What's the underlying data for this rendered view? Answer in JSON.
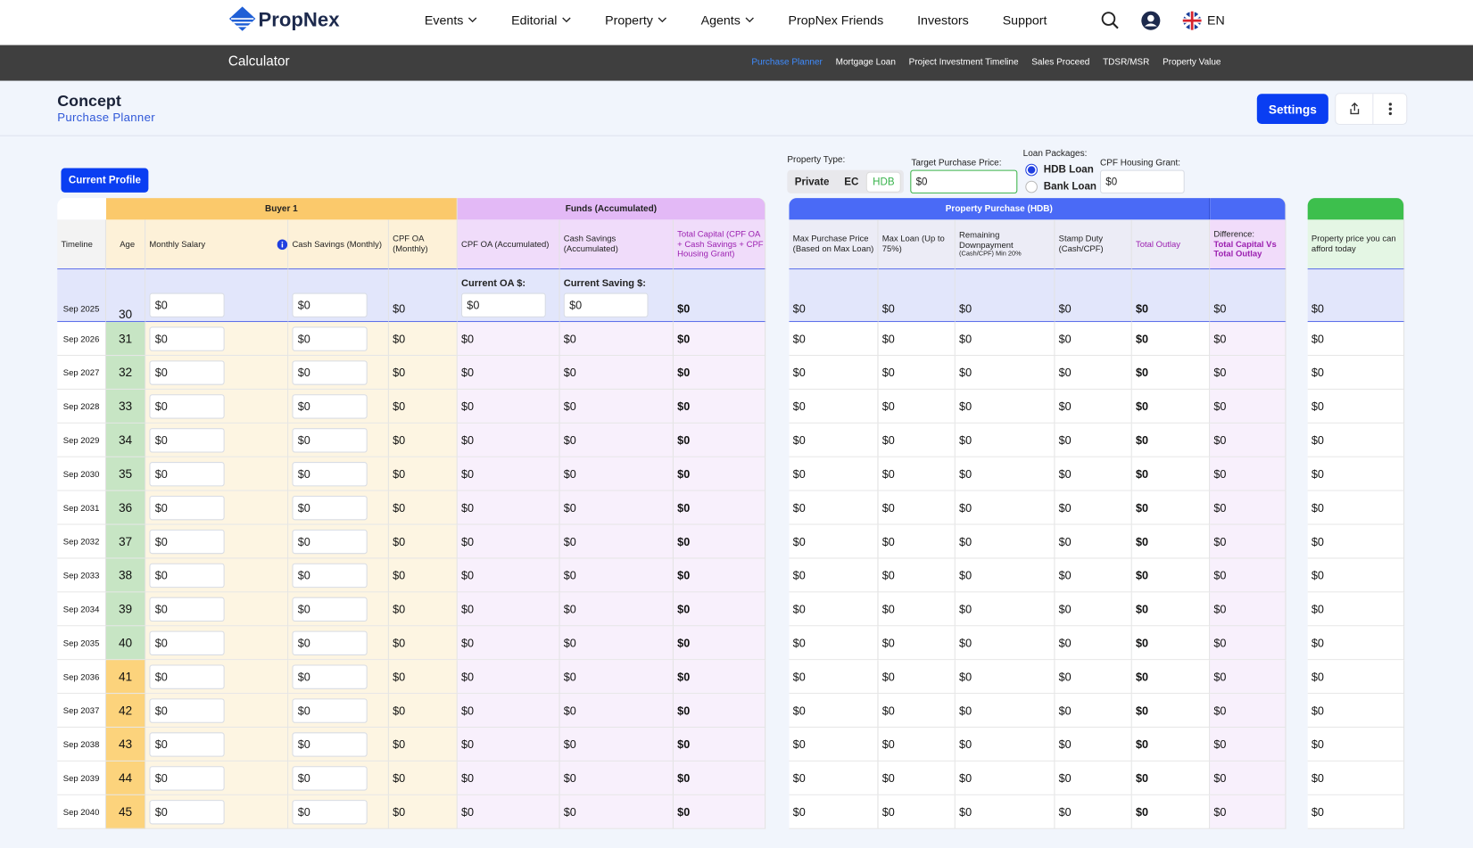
{
  "nav": {
    "brand": "PropNex",
    "items": [
      "Events",
      "Editorial",
      "Property",
      "Agents",
      "PropNex Friends",
      "Investors",
      "Support"
    ],
    "language": "EN"
  },
  "subnav": {
    "title": "Calculator",
    "links": [
      "Purchase Planner",
      "Mortgage Loan",
      "Project Investment Timeline",
      "Sales Proceed",
      "TDSR/MSR",
      "Property Value"
    ]
  },
  "page": {
    "title": "Concept",
    "subtitle": "Purchase Planner",
    "settings_button": "Settings"
  },
  "profile_button": "Current Profile",
  "controls": {
    "property_type_label": "Property Type:",
    "property_types": [
      "Private",
      "EC",
      "HDB"
    ],
    "target_label": "Target Purchase Price:",
    "target_value": "$0",
    "loan_label": "Loan Packages:",
    "loans": [
      "HDB Loan",
      "Bank Loan"
    ],
    "grant_label": "CPF Housing Grant:",
    "grant_value": "$0"
  },
  "table": {
    "groups": [
      "Buyer 1",
      "Funds (Accumulated)",
      "Property Purchase (HDB)"
    ],
    "columns": [
      {
        "label": "Timeline"
      },
      {
        "label": "Age"
      },
      {
        "label": "Monthly Salary"
      },
      {
        "label": "Cash Savings (Monthly)"
      },
      {
        "label": "CPF OA (Monthly)"
      },
      {
        "label": "CPF OA (Accumulated)"
      },
      {
        "label": "Cash Savings (Accumulated)"
      },
      {
        "label": "Total Capital (CPF OA + Cash Savings + CPF Housing Grant)"
      },
      {
        "label": "Max Purchase Price (Based on Max Loan)"
      },
      {
        "label": "Max Loan (Up to 75%)"
      },
      {
        "label": "Remaining Downpayment",
        "note": "(Cash/CPF) Min 20%"
      },
      {
        "label": "Stamp Duty (Cash/CPF)"
      },
      {
        "label": "Total Outlay"
      },
      {
        "label": "Difference:",
        "note": "Total Capital Vs Total Outlay"
      },
      {
        "label": "Property price you can afford today"
      }
    ],
    "first_row": {
      "timeline": "Sep 2025",
      "age": "30",
      "cpf_oa_label": "Current OA $:",
      "saving_label": "Current Saving $:",
      "cells": [
        "$0",
        "$0",
        "$0",
        "$0",
        "$0",
        "$0",
        "$0",
        "$0",
        "$0",
        "$0",
        "$0",
        "$0",
        "$0"
      ]
    },
    "rows": [
      {
        "timeline": "Sep 2026",
        "age": "31",
        "age_color": "#c7e5c4",
        "cells": [
          "$0",
          "$0",
          "$0",
          "$0",
          "$0",
          "$0",
          "$0",
          "$0",
          "$0",
          "$0",
          "$0",
          "$0",
          "$0"
        ]
      },
      {
        "timeline": "Sep 2027",
        "age": "32",
        "age_color": "#c7e5c4",
        "cells": [
          "$0",
          "$0",
          "$0",
          "$0",
          "$0",
          "$0",
          "$0",
          "$0",
          "$0",
          "$0",
          "$0",
          "$0",
          "$0"
        ]
      },
      {
        "timeline": "Sep 2028",
        "age": "33",
        "age_color": "#c7e5c4",
        "cells": [
          "$0",
          "$0",
          "$0",
          "$0",
          "$0",
          "$0",
          "$0",
          "$0",
          "$0",
          "$0",
          "$0",
          "$0",
          "$0"
        ]
      },
      {
        "timeline": "Sep 2029",
        "age": "34",
        "age_color": "#c7e5c4",
        "cells": [
          "$0",
          "$0",
          "$0",
          "$0",
          "$0",
          "$0",
          "$0",
          "$0",
          "$0",
          "$0",
          "$0",
          "$0",
          "$0"
        ]
      },
      {
        "timeline": "Sep 2030",
        "age": "35",
        "age_color": "#c7e5c4",
        "cells": [
          "$0",
          "$0",
          "$0",
          "$0",
          "$0",
          "$0",
          "$0",
          "$0",
          "$0",
          "$0",
          "$0",
          "$0",
          "$0"
        ]
      },
      {
        "timeline": "Sep 2031",
        "age": "36",
        "age_color": "#c7e5c4",
        "cells": [
          "$0",
          "$0",
          "$0",
          "$0",
          "$0",
          "$0",
          "$0",
          "$0",
          "$0",
          "$0",
          "$0",
          "$0",
          "$0"
        ]
      },
      {
        "timeline": "Sep 2032",
        "age": "37",
        "age_color": "#c7e5c4",
        "cells": [
          "$0",
          "$0",
          "$0",
          "$0",
          "$0",
          "$0",
          "$0",
          "$0",
          "$0",
          "$0",
          "$0",
          "$0",
          "$0"
        ]
      },
      {
        "timeline": "Sep 2033",
        "age": "38",
        "age_color": "#c7e5c4",
        "cells": [
          "$0",
          "$0",
          "$0",
          "$0",
          "$0",
          "$0",
          "$0",
          "$0",
          "$0",
          "$0",
          "$0",
          "$0",
          "$0"
        ]
      },
      {
        "timeline": "Sep 2034",
        "age": "39",
        "age_color": "#c7e5c4",
        "cells": [
          "$0",
          "$0",
          "$0",
          "$0",
          "$0",
          "$0",
          "$0",
          "$0",
          "$0",
          "$0",
          "$0",
          "$0",
          "$0"
        ]
      },
      {
        "timeline": "Sep 2035",
        "age": "40",
        "age_color": "#c7e5c4",
        "cells": [
          "$0",
          "$0",
          "$0",
          "$0",
          "$0",
          "$0",
          "$0",
          "$0",
          "$0",
          "$0",
          "$0",
          "$0",
          "$0"
        ]
      },
      {
        "timeline": "Sep 2036",
        "age": "41",
        "age_color": "#fcd37c",
        "cells": [
          "$0",
          "$0",
          "$0",
          "$0",
          "$0",
          "$0",
          "$0",
          "$0",
          "$0",
          "$0",
          "$0",
          "$0",
          "$0"
        ]
      },
      {
        "timeline": "Sep 2037",
        "age": "42",
        "age_color": "#fcd37c",
        "cells": [
          "$0",
          "$0",
          "$0",
          "$0",
          "$0",
          "$0",
          "$0",
          "$0",
          "$0",
          "$0",
          "$0",
          "$0",
          "$0"
        ]
      },
      {
        "timeline": "Sep 2038",
        "age": "43",
        "age_color": "#fcd37c",
        "cells": [
          "$0",
          "$0",
          "$0",
          "$0",
          "$0",
          "$0",
          "$0",
          "$0",
          "$0",
          "$0",
          "$0",
          "$0",
          "$0"
        ]
      },
      {
        "timeline": "Sep 2039",
        "age": "44",
        "age_color": "#fcd37c",
        "cells": [
          "$0",
          "$0",
          "$0",
          "$0",
          "$0",
          "$0",
          "$0",
          "$0",
          "$0",
          "$0",
          "$0",
          "$0",
          "$0"
        ]
      },
      {
        "timeline": "Sep 2040",
        "age": "45",
        "age_color": "#fcd37c",
        "cells": [
          "$0",
          "$0",
          "$0",
          "$0",
          "$0",
          "$0",
          "$0",
          "$0",
          "$0",
          "$0",
          "$0",
          "$0",
          "$0"
        ]
      }
    ]
  }
}
